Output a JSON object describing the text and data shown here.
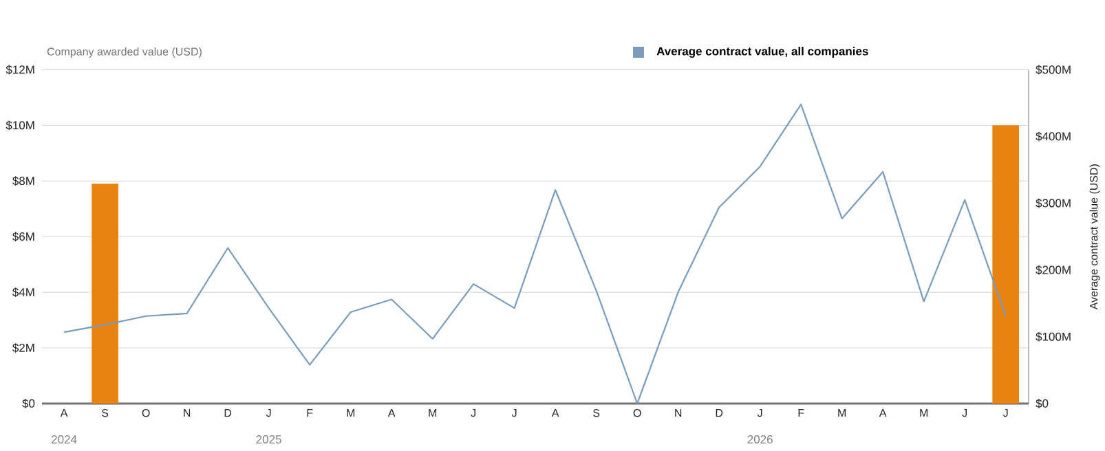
{
  "chart_data": {
    "type": "bar",
    "categories": [
      "A",
      "S",
      "O",
      "N",
      "D",
      "J",
      "F",
      "M",
      "A",
      "M",
      "J",
      "J",
      "A",
      "S",
      "O",
      "N",
      "D",
      "J",
      "F",
      "M",
      "A",
      "M",
      "J",
      "J"
    ],
    "series": [
      {
        "color": "#e8830f",
        "values": [
          null,
          7.9,
          null,
          null,
          null,
          null,
          null,
          null,
          null,
          null,
          null,
          null,
          null,
          null,
          null,
          null,
          null,
          null,
          null,
          null,
          null,
          null,
          null,
          10.0
        ]
      },
      {
        "type": "line",
        "axis": "y2",
        "name": "Average contract value, all companies",
        "color": "#7a9cbb",
        "values": [
          107,
          118,
          131,
          135,
          233,
          143,
          58,
          137,
          156,
          97,
          179,
          143,
          320,
          169,
          0,
          167,
          294,
          355,
          448,
          277,
          347,
          153,
          305,
          131
        ]
      }
    ],
    "ylabel": "Company awarded value (USD)",
    "y2label": "Average contract value (USD)",
    "ylim": [
      0,
      12
    ],
    "yticks": [
      {
        "value": 0,
        "label": "$0"
      },
      {
        "value": 2,
        "label": "$2M"
      },
      {
        "value": 4,
        "label": "$4M"
      },
      {
        "value": 6,
        "label": "$6M"
      },
      {
        "value": 8,
        "label": "$8M"
      },
      {
        "value": 10,
        "label": "$10M"
      },
      {
        "value": 12,
        "label": "$12M"
      }
    ],
    "y2lim": [
      0,
      500
    ],
    "y2ticks": [
      {
        "value": 0,
        "label": "$0"
      },
      {
        "value": 100,
        "label": "$100M"
      },
      {
        "value": 200,
        "label": "$200M"
      },
      {
        "value": 300,
        "label": "$300M"
      },
      {
        "value": 400,
        "label": "$400M"
      },
      {
        "value": 500,
        "label": "$500M"
      }
    ],
    "annotations": [
      "2024",
      "2025",
      "2026"
    ],
    "grid": "y",
    "legend": "top right"
  }
}
